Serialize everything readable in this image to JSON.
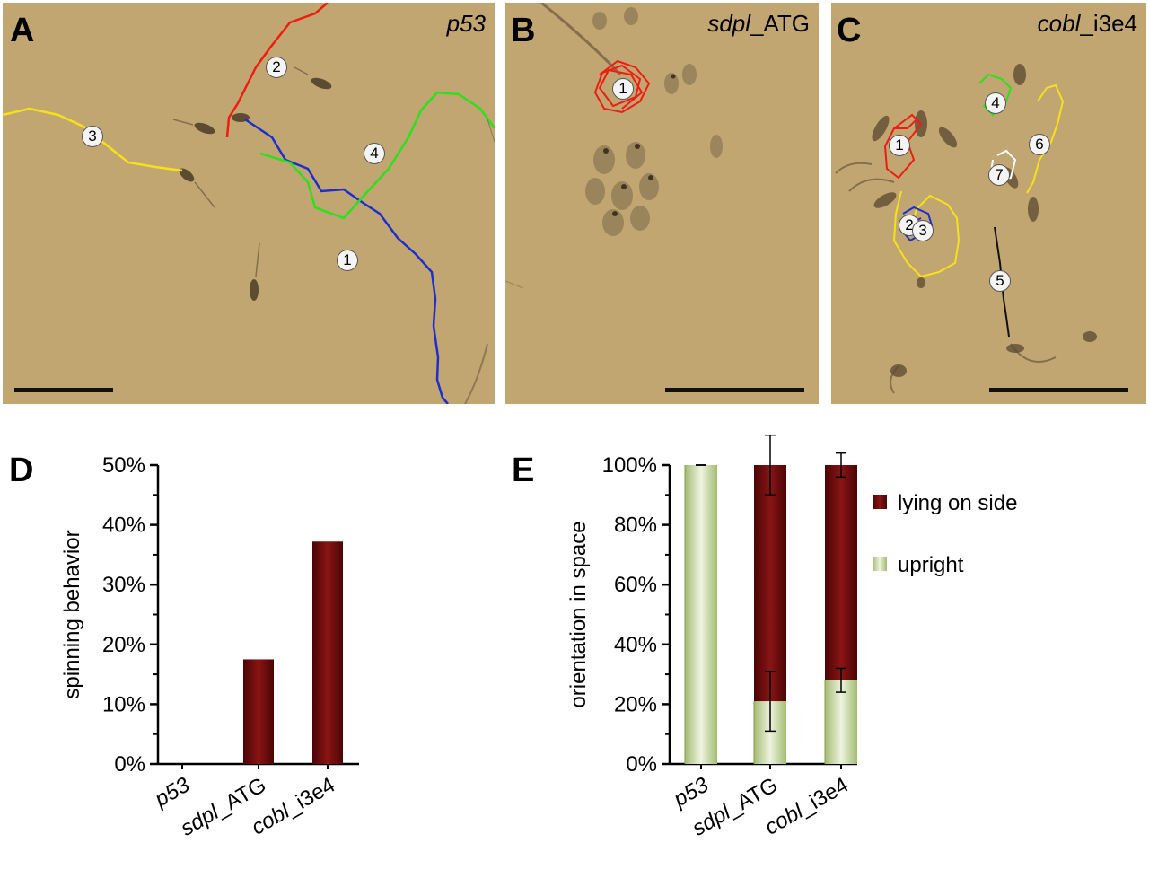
{
  "panels": {
    "a": {
      "letter": "A",
      "title": "p53",
      "tracks": [
        {
          "label": "1",
          "color": "#1b2fd1"
        },
        {
          "label": "2",
          "color": "#ee1c13"
        },
        {
          "label": "3",
          "color": "#f5e11a"
        },
        {
          "label": "4",
          "color": "#2be01c"
        }
      ]
    },
    "b": {
      "letter": "B",
      "title_italic": "sdpl",
      "title_rest": "_ATG",
      "tracks": [
        {
          "label": "1",
          "color": "#ee1c13"
        }
      ]
    },
    "c": {
      "letter": "C",
      "title_italic": "cobl",
      "title_rest": "_i3e4",
      "tracks": [
        {
          "label": "1",
          "color": "#ee1c13"
        },
        {
          "label": "2",
          "color": "#1b2fd1"
        },
        {
          "label": "3",
          "color": "#f5e11a"
        },
        {
          "label": "4",
          "color": "#2be01c"
        },
        {
          "label": "5",
          "color": "#111111"
        },
        {
          "label": "6",
          "color": "#f5e11a"
        },
        {
          "label": "7",
          "color": "#ffffff"
        }
      ]
    },
    "d": {
      "letter": "D"
    },
    "e": {
      "letter": "E"
    }
  },
  "chart_data": [
    {
      "type": "bar",
      "panel": "D",
      "categories": [
        "p53",
        "sdpl_ATG",
        "cobl_i3e4"
      ],
      "category_italic": [
        "p53",
        "sdpl",
        "cobl"
      ],
      "category_rest": [
        "",
        "_ATG",
        "_i3e4"
      ],
      "values": [
        0,
        17.5,
        37.2
      ],
      "ylabel": "spinning behavior",
      "ylim": [
        0,
        50
      ],
      "yticks": [
        "0%",
        "10%",
        "20%",
        "30%",
        "40%",
        "50%"
      ],
      "bar_color": "#6b0a0a"
    },
    {
      "type": "bar",
      "stacked": true,
      "panel": "E",
      "categories": [
        "p53",
        "sdpl_ATG",
        "cobl_i3e4"
      ],
      "category_italic": [
        "p53",
        "sdpl",
        "cobl"
      ],
      "category_rest": [
        "",
        "_ATG",
        "_i3e4"
      ],
      "ylabel": "orientation in space",
      "ylim": [
        0,
        100
      ],
      "yticks": [
        "0%",
        "20%",
        "40%",
        "60%",
        "80%",
        "100%"
      ],
      "series": [
        {
          "name": "upright",
          "values": [
            100,
            21,
            28
          ],
          "errors": [
            0,
            10,
            4
          ],
          "color": "#c9d9a4"
        },
        {
          "name": "lying on side",
          "values": [
            0,
            79,
            72
          ],
          "errors": [
            0,
            10,
            4
          ],
          "color": "#6b0a0a"
        }
      ],
      "legend": [
        "lying on side",
        "upright"
      ]
    }
  ]
}
